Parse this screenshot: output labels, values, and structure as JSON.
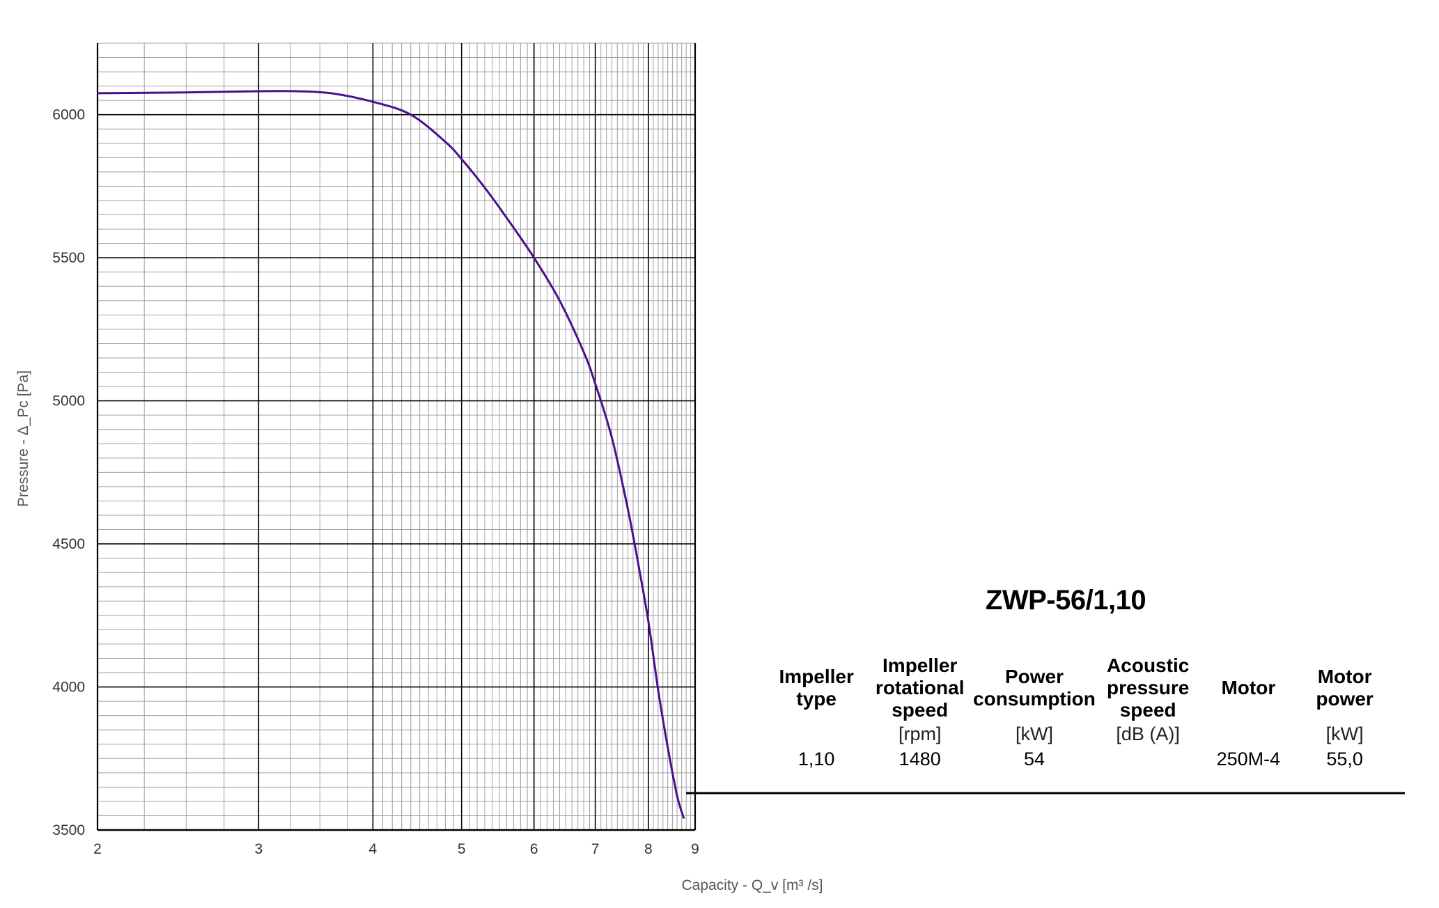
{
  "chart_data": {
    "type": "line",
    "xlabel": "Capacity - Q_v [m³ /s]",
    "ylabel": "Pressure - Δ_Pc [Pa]",
    "x_scale": "log",
    "xlim": [
      2,
      9
    ],
    "ylim": [
      3500,
      6250
    ],
    "x_ticks": [
      2,
      3,
      4,
      5,
      6,
      7,
      8,
      9
    ],
    "y_ticks": [
      3500,
      4000,
      4500,
      5000,
      5500,
      6000
    ],
    "grid": true,
    "series": [
      {
        "color": "#4b0f8c",
        "x": [
          2.0,
          2.5,
          3.0,
          3.3,
          3.6,
          4.0,
          4.4,
          4.8,
          5.0,
          5.3,
          5.6,
          6.0,
          6.4,
          6.8,
          7.0,
          7.3,
          7.6,
          7.8,
          8.0,
          8.2,
          8.4,
          8.6,
          8.75
        ],
        "y": [
          6075,
          6078,
          6082,
          6082,
          6075,
          6045,
          6000,
          5905,
          5845,
          5745,
          5640,
          5500,
          5350,
          5170,
          5060,
          4870,
          4620,
          4430,
          4230,
          3990,
          3790,
          3620,
          3540
        ]
      }
    ]
  },
  "spec": {
    "title": "ZWP-56/1,10",
    "headers": [
      [
        "Impeller",
        "type"
      ],
      [
        "Impeller",
        "rotational",
        "speed"
      ],
      [
        "Power",
        "consumption"
      ],
      [
        "Acoustic",
        "pressure",
        "speed"
      ],
      [
        "Motor"
      ],
      [
        "Motor",
        "power"
      ]
    ],
    "units": [
      "",
      "[rpm]",
      "[kW]",
      "[dB (A)]",
      "",
      "[kW]"
    ],
    "values": [
      "1,10",
      "1480",
      "54",
      "",
      "250M-4",
      "55,0"
    ]
  }
}
